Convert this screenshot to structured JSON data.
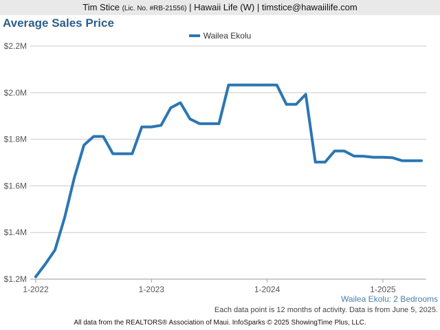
{
  "header": {
    "name": "Tim Stice",
    "license": "(Lic. No. #RB-21556)",
    "rest": "| Hawaii Life (W) | timstice@hawaiilife.com"
  },
  "footer": {
    "subtitle": "Wailea Ekolu: 2 Bedrooms",
    "data_note": "Each data point is 12 months of activity. Data is from June 5, 2025.",
    "source": "All data from the REALTORS® Association of Maui. InfoSparks © 2025 ShowingTime Plus, LLC."
  },
  "chart_data": {
    "type": "line",
    "title": "Average Sales Price",
    "xlabel": "",
    "ylabel": "",
    "legend_position": "top-center",
    "grid": true,
    "x_tick_labels": [
      "1-2022",
      "1-2023",
      "1-2024",
      "1-2025"
    ],
    "y_tick_labels": [
      "$1.2M",
      "$1.4M",
      "$1.6M",
      "$1.8M",
      "$2.0M",
      "$2.2M"
    ],
    "ylim": [
      1200000,
      2200000
    ],
    "xlim": [
      "2022-01",
      "2025-05"
    ],
    "categories": [
      "2022-01",
      "2022-02",
      "2022-03",
      "2022-04",
      "2022-05",
      "2022-06",
      "2022-07",
      "2022-08",
      "2022-09",
      "2022-10",
      "2022-11",
      "2022-12",
      "2023-01",
      "2023-02",
      "2023-03",
      "2023-04",
      "2023-05",
      "2023-06",
      "2023-07",
      "2023-08",
      "2023-09",
      "2023-10",
      "2023-11",
      "2023-12",
      "2024-01",
      "2024-02",
      "2024-03",
      "2024-04",
      "2024-05",
      "2024-06",
      "2024-07",
      "2024-08",
      "2024-09",
      "2024-10",
      "2024-11",
      "2024-12",
      "2025-01",
      "2025-02",
      "2025-03",
      "2025-04",
      "2025-05"
    ],
    "series": [
      {
        "name": "Wailea Ekolu",
        "color": "#2a76b3",
        "values": [
          1210000,
          1265000,
          1325000,
          1465000,
          1635000,
          1775000,
          1812000,
          1812000,
          1738000,
          1738000,
          1738000,
          1853000,
          1853000,
          1860000,
          1935000,
          1957000,
          1887000,
          1867000,
          1867000,
          1867000,
          2033000,
          2033000,
          2033000,
          2033000,
          2033000,
          2033000,
          1950000,
          1950000,
          1993000,
          1702000,
          1702000,
          1750000,
          1750000,
          1728000,
          1727000,
          1723000,
          1723000,
          1721000,
          1708000,
          1708000,
          1708000
        ]
      }
    ]
  }
}
